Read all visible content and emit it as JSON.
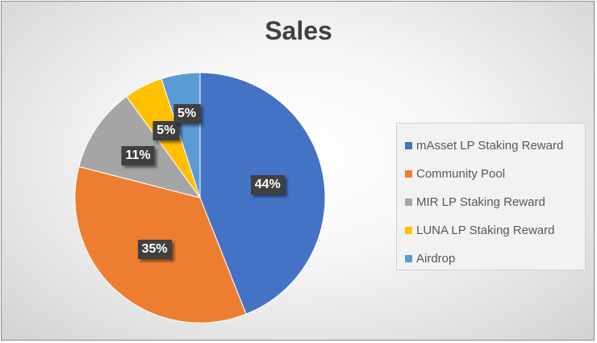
{
  "chart_data": {
    "type": "pie",
    "title": "Sales",
    "legend_position": "right",
    "slices": [
      {
        "label": "mAsset LP Staking Reward",
        "value": 44,
        "display": "44%",
        "color": "#4472c4"
      },
      {
        "label": "Community Pool",
        "value": 35,
        "display": "35%",
        "color": "#ed7d31"
      },
      {
        "label": "MIR LP Staking Reward",
        "value": 11,
        "display": "11%",
        "color": "#a5a5a5"
      },
      {
        "label": "LUNA LP Staking Reward",
        "value": 5,
        "display": "5%",
        "color": "#ffc000"
      },
      {
        "label": "Airdrop",
        "value": 5,
        "display": "5%",
        "color": "#5b9bd5"
      }
    ]
  }
}
